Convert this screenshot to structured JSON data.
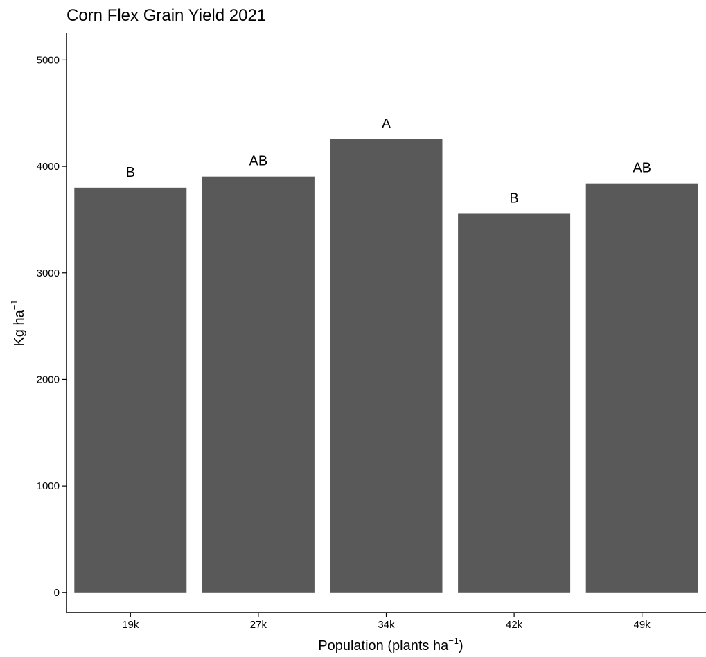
{
  "chart_data": {
    "type": "bar",
    "title": "Corn Flex Grain Yield 2021",
    "xlabel": {
      "main": "Population  (plants ha",
      "superscript": "−1",
      "suffix": ")"
    },
    "ylabel": {
      "main": "Kg  ha",
      "superscript": "−1"
    },
    "categories": [
      "19k",
      "27k",
      "34k",
      "42k",
      "49k"
    ],
    "values": [
      3800,
      3905,
      4255,
      3555,
      3840
    ],
    "annotations": [
      "B",
      "AB",
      "A",
      "B",
      "AB"
    ],
    "yticks": [
      0,
      1000,
      2000,
      3000,
      4000,
      5000
    ],
    "ylim": [
      -190,
      5250
    ],
    "grid": false,
    "legend": "none",
    "bar_color": "#595959",
    "axis_color": "#000000"
  }
}
